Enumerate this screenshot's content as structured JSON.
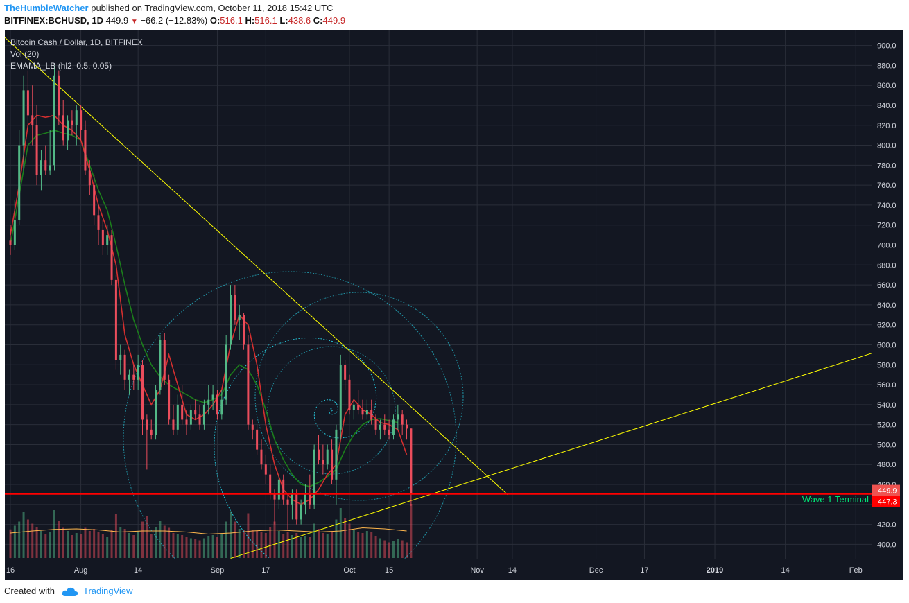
{
  "header": {
    "author": "TheHumbleWatcher",
    "published": "published on TradingView.com, October 11, 2018 15:42 UTC",
    "symbol": "BITFINEX:BCHUSD, 1D",
    "last": "449.9",
    "change": "−66.2 (−12.83%)",
    "o_label": "O:",
    "o_value": "516.1",
    "h_label": "H:",
    "h_value": "516.1",
    "l_label": "L:",
    "l_value": "438.6",
    "c_label": "C:",
    "c_value": "449.9"
  },
  "legend": {
    "line1": "Bitcoin Cash / Dollar, 1D, BITFINEX",
    "line2": "Vol (20)",
    "line3": "EMAMA_LB (hl2, 0.5, 0.05)"
  },
  "annotation": {
    "label": "Wave 1 Terminal",
    "price": 450.5
  },
  "price_tags": [
    {
      "text": "449.9",
      "value": 449.9,
      "color": "#ef5350"
    },
    {
      "text": "447.3",
      "value": 447.3,
      "color": "#ff0000"
    }
  ],
  "footer": {
    "created": "Created with",
    "brand": "TradingView"
  },
  "colors": {
    "background": "#131722",
    "grid": "#2a2e39",
    "up": "#53b987",
    "down": "#eb4d5c",
    "trendline": "#ffff00",
    "fib": "#26c6da",
    "hline": "#ff0000",
    "annotation": "#00e676",
    "ema_green": "#1b7e1b",
    "ema_red": "#d32f2f",
    "vol_ma": "#ffb74d"
  },
  "chart_data": {
    "type": "candlestick",
    "title": "Bitcoin Cash / Dollar, 1D, BITFINEX",
    "ylim": [
      385,
      915
    ],
    "y_ticks": [
      400,
      420,
      440,
      460,
      480,
      500,
      520,
      540,
      560,
      580,
      600,
      620,
      640,
      660,
      680,
      700,
      720,
      740,
      760,
      780,
      800,
      820,
      840,
      860,
      880,
      900
    ],
    "x_ticks": [
      "16",
      "Aug",
      "14",
      "Sep",
      "17",
      "Oct",
      "15",
      "Nov",
      "14",
      "Dec",
      "17",
      "2019",
      "14",
      "Feb"
    ],
    "x_tick_days": [
      0,
      16,
      29,
      47,
      58,
      77,
      86,
      106,
      114,
      133,
      144,
      160,
      176,
      192
    ],
    "x_start_date": "2018-07-16",
    "x_end_day": 197,
    "candles": [
      {
        "o": 705,
        "h": 720,
        "l": 690,
        "c": 700,
        "v": 55
      },
      {
        "o": 700,
        "h": 745,
        "l": 695,
        "c": 725,
        "v": 62
      },
      {
        "o": 725,
        "h": 815,
        "l": 720,
        "c": 800,
        "v": 70
      },
      {
        "o": 800,
        "h": 870,
        "l": 775,
        "c": 855,
        "v": 88
      },
      {
        "o": 855,
        "h": 875,
        "l": 815,
        "c": 830,
        "v": 74
      },
      {
        "o": 830,
        "h": 860,
        "l": 800,
        "c": 820,
        "v": 66
      },
      {
        "o": 820,
        "h": 840,
        "l": 760,
        "c": 770,
        "v": 60
      },
      {
        "o": 770,
        "h": 795,
        "l": 755,
        "c": 785,
        "v": 52
      },
      {
        "o": 785,
        "h": 800,
        "l": 770,
        "c": 775,
        "v": 46
      },
      {
        "o": 775,
        "h": 815,
        "l": 770,
        "c": 780,
        "v": 50
      },
      {
        "o": 780,
        "h": 880,
        "l": 775,
        "c": 870,
        "v": 92
      },
      {
        "o": 870,
        "h": 875,
        "l": 820,
        "c": 830,
        "v": 72
      },
      {
        "o": 830,
        "h": 845,
        "l": 800,
        "c": 805,
        "v": 58
      },
      {
        "o": 805,
        "h": 830,
        "l": 795,
        "c": 825,
        "v": 52
      },
      {
        "o": 825,
        "h": 835,
        "l": 810,
        "c": 820,
        "v": 44
      },
      {
        "o": 820,
        "h": 840,
        "l": 800,
        "c": 835,
        "v": 48
      },
      {
        "o": 835,
        "h": 840,
        "l": 805,
        "c": 815,
        "v": 46
      },
      {
        "o": 815,
        "h": 825,
        "l": 770,
        "c": 775,
        "v": 58
      },
      {
        "o": 775,
        "h": 785,
        "l": 750,
        "c": 760,
        "v": 52
      },
      {
        "o": 760,
        "h": 770,
        "l": 720,
        "c": 730,
        "v": 56
      },
      {
        "o": 730,
        "h": 740,
        "l": 700,
        "c": 715,
        "v": 50
      },
      {
        "o": 715,
        "h": 725,
        "l": 690,
        "c": 700,
        "v": 46
      },
      {
        "o": 700,
        "h": 720,
        "l": 690,
        "c": 710,
        "v": 40
      },
      {
        "o": 710,
        "h": 715,
        "l": 660,
        "c": 665,
        "v": 54
      },
      {
        "o": 665,
        "h": 670,
        "l": 575,
        "c": 585,
        "v": 84
      },
      {
        "o": 585,
        "h": 600,
        "l": 570,
        "c": 590,
        "v": 60
      },
      {
        "o": 590,
        "h": 595,
        "l": 555,
        "c": 565,
        "v": 56
      },
      {
        "o": 565,
        "h": 575,
        "l": 550,
        "c": 570,
        "v": 48
      },
      {
        "o": 570,
        "h": 580,
        "l": 555,
        "c": 565,
        "v": 44
      },
      {
        "o": 565,
        "h": 590,
        "l": 555,
        "c": 580,
        "v": 52
      },
      {
        "o": 580,
        "h": 585,
        "l": 510,
        "c": 525,
        "v": 70
      },
      {
        "o": 525,
        "h": 530,
        "l": 475,
        "c": 515,
        "v": 80
      },
      {
        "o": 515,
        "h": 525,
        "l": 505,
        "c": 510,
        "v": 46
      },
      {
        "o": 510,
        "h": 560,
        "l": 505,
        "c": 555,
        "v": 60
      },
      {
        "o": 555,
        "h": 610,
        "l": 550,
        "c": 605,
        "v": 72
      },
      {
        "o": 605,
        "h": 612,
        "l": 560,
        "c": 565,
        "v": 62
      },
      {
        "o": 565,
        "h": 570,
        "l": 520,
        "c": 525,
        "v": 58
      },
      {
        "o": 525,
        "h": 540,
        "l": 510,
        "c": 515,
        "v": 48
      },
      {
        "o": 515,
        "h": 550,
        "l": 510,
        "c": 540,
        "v": 46
      },
      {
        "o": 540,
        "h": 560,
        "l": 520,
        "c": 525,
        "v": 44
      },
      {
        "o": 525,
        "h": 535,
        "l": 510,
        "c": 520,
        "v": 40
      },
      {
        "o": 520,
        "h": 540,
        "l": 515,
        "c": 535,
        "v": 38
      },
      {
        "o": 535,
        "h": 545,
        "l": 525,
        "c": 530,
        "v": 36
      },
      {
        "o": 530,
        "h": 540,
        "l": 515,
        "c": 520,
        "v": 34
      },
      {
        "o": 520,
        "h": 545,
        "l": 515,
        "c": 540,
        "v": 38
      },
      {
        "o": 540,
        "h": 560,
        "l": 530,
        "c": 545,
        "v": 42
      },
      {
        "o": 545,
        "h": 560,
        "l": 535,
        "c": 550,
        "v": 44
      },
      {
        "o": 550,
        "h": 555,
        "l": 525,
        "c": 530,
        "v": 40
      },
      {
        "o": 530,
        "h": 555,
        "l": 525,
        "c": 545,
        "v": 46
      },
      {
        "o": 545,
        "h": 610,
        "l": 540,
        "c": 600,
        "v": 70
      },
      {
        "o": 600,
        "h": 660,
        "l": 595,
        "c": 650,
        "v": 90
      },
      {
        "o": 650,
        "h": 660,
        "l": 620,
        "c": 625,
        "v": 70
      },
      {
        "o": 625,
        "h": 640,
        "l": 605,
        "c": 630,
        "v": 56
      },
      {
        "o": 630,
        "h": 632,
        "l": 595,
        "c": 600,
        "v": 54
      },
      {
        "o": 600,
        "h": 610,
        "l": 515,
        "c": 520,
        "v": 86
      },
      {
        "o": 520,
        "h": 525,
        "l": 505,
        "c": 515,
        "v": 54
      },
      {
        "o": 515,
        "h": 520,
        "l": 490,
        "c": 495,
        "v": 52
      },
      {
        "o": 495,
        "h": 505,
        "l": 475,
        "c": 480,
        "v": 50
      },
      {
        "o": 480,
        "h": 490,
        "l": 460,
        "c": 470,
        "v": 48
      },
      {
        "o": 470,
        "h": 480,
        "l": 445,
        "c": 450,
        "v": 60
      },
      {
        "o": 450,
        "h": 455,
        "l": 420,
        "c": 445,
        "v": 70
      },
      {
        "o": 445,
        "h": 470,
        "l": 435,
        "c": 465,
        "v": 52
      },
      {
        "o": 465,
        "h": 470,
        "l": 440,
        "c": 445,
        "v": 46
      },
      {
        "o": 445,
        "h": 450,
        "l": 415,
        "c": 440,
        "v": 50
      },
      {
        "o": 440,
        "h": 455,
        "l": 425,
        "c": 450,
        "v": 44
      },
      {
        "o": 450,
        "h": 455,
        "l": 420,
        "c": 425,
        "v": 48
      },
      {
        "o": 425,
        "h": 445,
        "l": 420,
        "c": 440,
        "v": 40
      },
      {
        "o": 440,
        "h": 460,
        "l": 430,
        "c": 450,
        "v": 42
      },
      {
        "o": 450,
        "h": 470,
        "l": 435,
        "c": 440,
        "v": 40
      },
      {
        "o": 440,
        "h": 500,
        "l": 435,
        "c": 495,
        "v": 66
      },
      {
        "o": 495,
        "h": 510,
        "l": 480,
        "c": 485,
        "v": 56
      },
      {
        "o": 485,
        "h": 500,
        "l": 470,
        "c": 480,
        "v": 48
      },
      {
        "o": 480,
        "h": 500,
        "l": 475,
        "c": 495,
        "v": 46
      },
      {
        "o": 495,
        "h": 505,
        "l": 460,
        "c": 465,
        "v": 50
      },
      {
        "o": 465,
        "h": 520,
        "l": 440,
        "c": 515,
        "v": 74
      },
      {
        "o": 515,
        "h": 590,
        "l": 505,
        "c": 580,
        "v": 96
      },
      {
        "o": 580,
        "h": 585,
        "l": 555,
        "c": 565,
        "v": 76
      },
      {
        "o": 565,
        "h": 570,
        "l": 530,
        "c": 535,
        "v": 66
      },
      {
        "o": 535,
        "h": 545,
        "l": 525,
        "c": 540,
        "v": 54
      },
      {
        "o": 540,
        "h": 555,
        "l": 530,
        "c": 535,
        "v": 50
      },
      {
        "o": 535,
        "h": 545,
        "l": 525,
        "c": 530,
        "v": 48
      },
      {
        "o": 530,
        "h": 545,
        "l": 525,
        "c": 535,
        "v": 52
      },
      {
        "o": 535,
        "h": 545,
        "l": 520,
        "c": 525,
        "v": 50
      },
      {
        "o": 525,
        "h": 530,
        "l": 510,
        "c": 515,
        "v": 42
      },
      {
        "o": 515,
        "h": 525,
        "l": 505,
        "c": 520,
        "v": 38
      },
      {
        "o": 520,
        "h": 530,
        "l": 510,
        "c": 515,
        "v": 34
      },
      {
        "o": 515,
        "h": 525,
        "l": 505,
        "c": 510,
        "v": 30
      },
      {
        "o": 510,
        "h": 530,
        "l": 505,
        "c": 525,
        "v": 32
      },
      {
        "o": 525,
        "h": 540,
        "l": 515,
        "c": 530,
        "v": 36
      },
      {
        "o": 530,
        "h": 535,
        "l": 510,
        "c": 520,
        "v": 34
      },
      {
        "o": 520,
        "h": 525,
        "l": 505,
        "c": 516,
        "v": 30
      },
      {
        "o": 516.1,
        "h": 516.1,
        "l": 438.6,
        "c": 449.9,
        "v": 104
      }
    ],
    "ema_green": [
      [
        0,
        700
      ],
      [
        2,
        750
      ],
      [
        4,
        800
      ],
      [
        6,
        810
      ],
      [
        8,
        812
      ],
      [
        10,
        815
      ],
      [
        12,
        812
      ],
      [
        14,
        810
      ],
      [
        16,
        805
      ],
      [
        18,
        780
      ],
      [
        20,
        755
      ],
      [
        22,
        735
      ],
      [
        24,
        700
      ],
      [
        26,
        660
      ],
      [
        28,
        625
      ],
      [
        30,
        600
      ],
      [
        32,
        580
      ],
      [
        34,
        568
      ],
      [
        36,
        560
      ],
      [
        38,
        555
      ],
      [
        40,
        550
      ],
      [
        42,
        545
      ],
      [
        44,
        542
      ],
      [
        46,
        545
      ],
      [
        48,
        550
      ],
      [
        50,
        570
      ],
      [
        52,
        580
      ],
      [
        54,
        575
      ],
      [
        56,
        560
      ],
      [
        58,
        535
      ],
      [
        60,
        505
      ],
      [
        62,
        485
      ],
      [
        64,
        470
      ],
      [
        66,
        460
      ],
      [
        68,
        458
      ],
      [
        70,
        462
      ],
      [
        72,
        468
      ],
      [
        74,
        475
      ],
      [
        76,
        495
      ],
      [
        78,
        510
      ],
      [
        80,
        520
      ],
      [
        82,
        525
      ],
      [
        84,
        526
      ],
      [
        86,
        524
      ],
      [
        88,
        522
      ]
    ],
    "ema_red": [
      [
        0,
        710
      ],
      [
        2,
        760
      ],
      [
        4,
        820
      ],
      [
        6,
        830
      ],
      [
        8,
        828
      ],
      [
        10,
        830
      ],
      [
        12,
        820
      ],
      [
        14,
        815
      ],
      [
        16,
        805
      ],
      [
        18,
        775
      ],
      [
        20,
        740
      ],
      [
        22,
        715
      ],
      [
        24,
        680
      ],
      [
        26,
        610
      ],
      [
        28,
        580
      ],
      [
        30,
        560
      ],
      [
        32,
        540
      ],
      [
        34,
        555
      ],
      [
        36,
        590
      ],
      [
        38,
        560
      ],
      [
        40,
        530
      ],
      [
        42,
        525
      ],
      [
        44,
        530
      ],
      [
        46,
        540
      ],
      [
        48,
        555
      ],
      [
        50,
        600
      ],
      [
        52,
        630
      ],
      [
        54,
        620
      ],
      [
        56,
        580
      ],
      [
        58,
        520
      ],
      [
        60,
        480
      ],
      [
        62,
        455
      ],
      [
        64,
        445
      ],
      [
        66,
        440
      ],
      [
        68,
        445
      ],
      [
        70,
        455
      ],
      [
        72,
        470
      ],
      [
        74,
        480
      ],
      [
        76,
        530
      ],
      [
        78,
        545
      ],
      [
        80,
        535
      ],
      [
        82,
        530
      ],
      [
        84,
        522
      ],
      [
        86,
        520
      ],
      [
        88,
        515
      ],
      [
        90,
        490
      ]
    ],
    "vol_ma": [
      [
        0,
        48
      ],
      [
        5,
        52
      ],
      [
        10,
        55
      ],
      [
        15,
        56
      ],
      [
        20,
        54
      ],
      [
        25,
        50
      ],
      [
        30,
        52
      ],
      [
        35,
        52
      ],
      [
        40,
        50
      ],
      [
        45,
        46
      ],
      [
        50,
        48
      ],
      [
        55,
        52
      ],
      [
        60,
        54
      ],
      [
        65,
        52
      ],
      [
        70,
        50
      ],
      [
        75,
        52
      ],
      [
        80,
        58
      ],
      [
        85,
        56
      ],
      [
        90,
        52
      ]
    ],
    "trendlines": [
      {
        "p1": [
          -3,
          915
        ],
        "p2": [
          80.5,
          580
        ],
        "extend_to": 113
      },
      {
        "p1": [
          50,
          386
        ],
        "p2": [
          196,
          592
        ]
      }
    ]
  }
}
